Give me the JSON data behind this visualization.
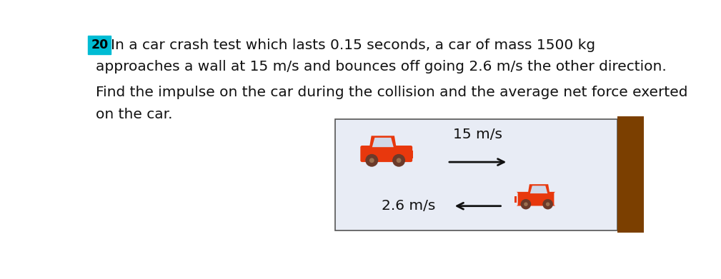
{
  "title_number_bg": "#00BCD4",
  "line1": "In a car crash test which lasts 0.15 seconds, a car of mass 1500 kg",
  "line2": "approaches a wall at 15 m/s and bounces off going 2.6 m/s the other direction.",
  "line3": "Find the impulse on the car during the collision and the average net force exerted",
  "line4": "on the car.",
  "car_color": "#E8380D",
  "wheel_color": "#6B3A2A",
  "window_color": "#D0D8E8",
  "wall_color": "#7B3F00",
  "diagram_bg": "#E8ECF5",
  "arrow_color": "#111111",
  "speed1_label": "15 m/s",
  "speed2_label": "2.6 m/s",
  "text_color": "#111111",
  "font_size": 14.5
}
